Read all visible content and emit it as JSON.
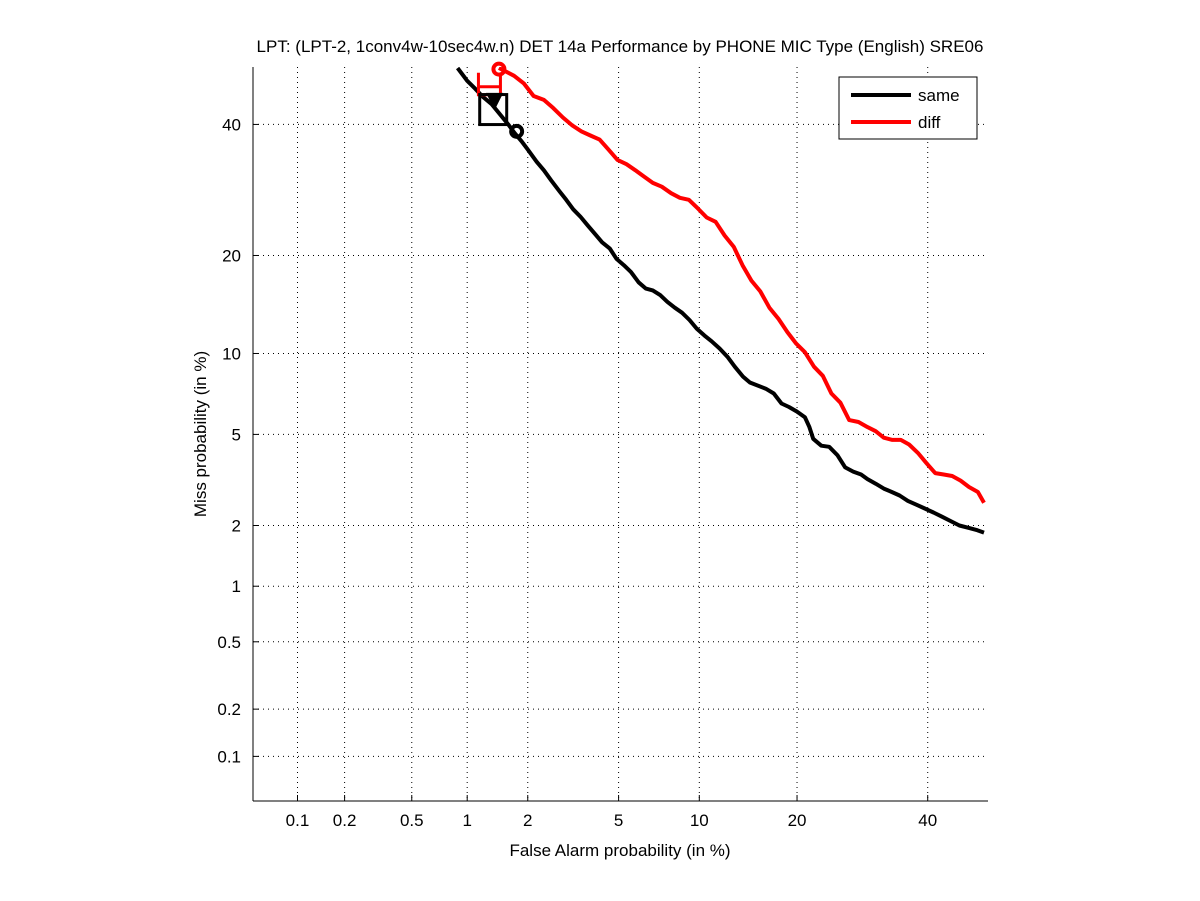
{
  "chart_data": {
    "type": "line",
    "scale": "normal-deviate (probit) on both axes",
    "title": "LPT: (LPT-2, 1conv4w-10sec4w.n) DET 14a Performance by PHONE MIC Type (English) SRE06",
    "xlabel": "False Alarm probability (in %)",
    "ylabel": "Miss probability (in %)",
    "xlim": [
      0.05,
      50
    ],
    "ylim": [
      0.05,
      50
    ],
    "grid": true,
    "x_ticks": [
      0.1,
      0.2,
      0.5,
      1,
      2,
      5,
      10,
      20,
      40
    ],
    "x_tick_labels": [
      "0.1",
      "0.2",
      "0.5",
      "1",
      "2",
      "5",
      "10",
      "20",
      "40"
    ],
    "y_ticks": [
      0.1,
      0.2,
      0.5,
      1,
      2,
      5,
      10,
      20,
      40
    ],
    "y_tick_labels": [
      "0.1",
      "0.2",
      "0.5",
      "1",
      "2",
      "5",
      "10",
      "20",
      "40"
    ],
    "legend": {
      "placement": "top-right",
      "entries": [
        "same",
        "diff"
      ]
    },
    "series": [
      {
        "name": "same",
        "color": "#000000",
        "points": [
          [
            0.89,
            50.0
          ],
          [
            1.0,
            47.7
          ],
          [
            1.1,
            46.3
          ],
          [
            1.2,
            44.9
          ],
          [
            1.33,
            43.6
          ],
          [
            1.45,
            42.0
          ],
          [
            1.62,
            39.9
          ],
          [
            1.73,
            38.5
          ],
          [
            1.87,
            37.1
          ],
          [
            2.0,
            35.7
          ],
          [
            2.2,
            33.7
          ],
          [
            2.38,
            32.3
          ],
          [
            2.57,
            30.7
          ],
          [
            2.8,
            29.0
          ],
          [
            3.0,
            27.7
          ],
          [
            3.22,
            26.3
          ],
          [
            3.47,
            25.2
          ],
          [
            3.72,
            24.0
          ],
          [
            4.0,
            22.8
          ],
          [
            4.28,
            21.7
          ],
          [
            4.6,
            20.9
          ],
          [
            4.9,
            19.6
          ],
          [
            5.25,
            18.8
          ],
          [
            5.6,
            18.0
          ],
          [
            6.0,
            16.8
          ],
          [
            6.4,
            16.1
          ],
          [
            6.8,
            15.9
          ],
          [
            7.25,
            15.4
          ],
          [
            7.7,
            14.7
          ],
          [
            8.2,
            14.1
          ],
          [
            8.7,
            13.6
          ],
          [
            9.25,
            12.9
          ],
          [
            9.8,
            12.1
          ],
          [
            10.4,
            11.5
          ],
          [
            11.0,
            11.0
          ],
          [
            11.7,
            10.4
          ],
          [
            12.4,
            9.75
          ],
          [
            13.1,
            9.0
          ],
          [
            13.9,
            8.3
          ],
          [
            14.6,
            7.9
          ],
          [
            16.3,
            7.5
          ],
          [
            17.2,
            7.2
          ],
          [
            18.1,
            6.6
          ],
          [
            19.0,
            6.4
          ],
          [
            20.0,
            6.15
          ],
          [
            21.0,
            5.85
          ],
          [
            21.6,
            5.35
          ],
          [
            22.1,
            4.8
          ],
          [
            23.2,
            4.5
          ],
          [
            24.3,
            4.45
          ],
          [
            25.5,
            4.1
          ],
          [
            26.6,
            3.65
          ],
          [
            27.8,
            3.5
          ],
          [
            29.0,
            3.4
          ],
          [
            30.0,
            3.25
          ],
          [
            31.3,
            3.1
          ],
          [
            32.6,
            2.95
          ],
          [
            33.9,
            2.85
          ],
          [
            35.2,
            2.75
          ],
          [
            36.6,
            2.6
          ],
          [
            38.0,
            2.5
          ],
          [
            39.5,
            2.4
          ],
          [
            41.0,
            2.3
          ],
          [
            42.5,
            2.2
          ],
          [
            44.0,
            2.1
          ],
          [
            45.6,
            2.0
          ],
          [
            47.2,
            1.95
          ],
          [
            48.8,
            1.9
          ],
          [
            50.0,
            1.85
          ]
        ]
      },
      {
        "name": "diff",
        "color": "#ff0000",
        "points": [
          [
            1.45,
            50.0
          ],
          [
            1.72,
            48.6
          ],
          [
            1.92,
            47.2
          ],
          [
            2.13,
            45.0
          ],
          [
            2.38,
            44.3
          ],
          [
            2.62,
            42.9
          ],
          [
            2.9,
            41.2
          ],
          [
            3.2,
            39.8
          ],
          [
            3.5,
            38.8
          ],
          [
            3.82,
            38.1
          ],
          [
            4.18,
            37.4
          ],
          [
            4.55,
            35.7
          ],
          [
            4.95,
            34.0
          ],
          [
            5.38,
            33.3
          ],
          [
            5.83,
            32.3
          ],
          [
            6.3,
            31.3
          ],
          [
            6.8,
            30.3
          ],
          [
            7.35,
            29.7
          ],
          [
            7.95,
            28.7
          ],
          [
            8.55,
            28.0
          ],
          [
            9.2,
            27.7
          ],
          [
            9.9,
            26.4
          ],
          [
            10.6,
            25.1
          ],
          [
            11.35,
            24.5
          ],
          [
            12.15,
            22.6
          ],
          [
            13.0,
            21.1
          ],
          [
            13.85,
            18.8
          ],
          [
            14.75,
            17.0
          ],
          [
            15.7,
            15.8
          ],
          [
            16.7,
            14.1
          ],
          [
            17.75,
            13.0
          ],
          [
            18.8,
            11.8
          ],
          [
            19.9,
            10.8
          ],
          [
            21.0,
            10.1
          ],
          [
            22.2,
            9.0
          ],
          [
            23.4,
            8.35
          ],
          [
            24.6,
            7.2
          ],
          [
            25.9,
            6.65
          ],
          [
            27.2,
            5.7
          ],
          [
            28.6,
            5.6
          ],
          [
            30.0,
            5.35
          ],
          [
            31.3,
            5.15
          ],
          [
            32.6,
            4.85
          ],
          [
            34.0,
            4.75
          ],
          [
            35.4,
            4.75
          ],
          [
            36.8,
            4.55
          ],
          [
            38.3,
            4.2
          ],
          [
            39.8,
            3.8
          ],
          [
            41.3,
            3.45
          ],
          [
            42.8,
            3.4
          ],
          [
            44.3,
            3.35
          ],
          [
            45.8,
            3.2
          ],
          [
            47.3,
            3.0
          ],
          [
            48.9,
            2.85
          ],
          [
            50.0,
            2.55
          ]
        ]
      }
    ],
    "markers": [
      {
        "series": "diff",
        "kind": "circle",
        "fa": 1.45,
        "miss": 49.8,
        "color": "#ff0000"
      },
      {
        "series": "diff",
        "kind": "open-top-box",
        "fa": 1.3,
        "miss": 47.0,
        "color": "#ff0000"
      },
      {
        "series": "same",
        "kind": "box",
        "fa": 1.35,
        "miss": 42.6,
        "color": "#000000"
      },
      {
        "series": "same",
        "kind": "triangle",
        "fa": 1.38,
        "miss": 44.3,
        "color": "#000000"
      },
      {
        "series": "same",
        "kind": "circle",
        "fa": 1.77,
        "miss": 38.8,
        "color": "#000000"
      }
    ]
  }
}
